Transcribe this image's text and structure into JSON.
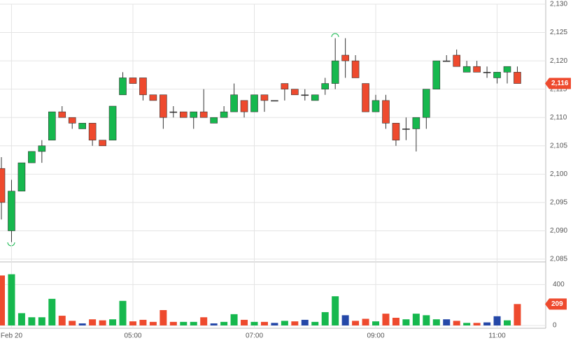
{
  "chart_data": {
    "type": "candlestick",
    "categories": [
      null,
      "Feb 20",
      null,
      null,
      null,
      null,
      null,
      null,
      null,
      null,
      null,
      null,
      null,
      "05:00",
      null,
      null,
      null,
      null,
      null,
      null,
      null,
      null,
      null,
      null,
      null,
      "07:00",
      null,
      null,
      null,
      null,
      null,
      null,
      null,
      null,
      null,
      null,
      null,
      "09:00",
      null,
      null,
      null,
      null,
      null,
      null,
      null,
      null,
      null,
      null,
      null,
      "11:00",
      null,
      null
    ],
    "open": [
      2101,
      2090,
      2097,
      2102,
      2104,
      2106,
      2111,
      2110,
      2108,
      2109,
      2106,
      2106,
      2114,
      2117,
      2117,
      2114,
      2114,
      2111,
      2111,
      2110,
      2111,
      2109,
      2110,
      2111,
      2113,
      2111,
      2114,
      2113,
      2116,
      2115,
      2114,
      2113,
      2115,
      2116,
      2121,
      2120,
      2116,
      2111,
      2113,
      2109,
      2108,
      2108,
      2110,
      2115,
      2120,
      2121,
      2118,
      2119,
      2118,
      2117,
      2118,
      2118
    ],
    "high": [
      2103,
      2099,
      2102,
      2104,
      2106,
      2111,
      2112,
      2110,
      2109,
      2109,
      2106,
      2112,
      2118,
      2117,
      2117,
      2114,
      2114,
      2112,
      2111,
      2111,
      2115,
      2110,
      2112,
      2116,
      2113,
      2114,
      2114,
      2113,
      2116,
      2115,
      2115,
      2114,
      2117,
      2124,
      2124,
      2121,
      2116,
      2114,
      2114,
      2109,
      2110,
      2110,
      2115,
      2120,
      2121,
      2122,
      2120,
      2120,
      2119,
      2118,
      2119,
      2119
    ],
    "low": [
      2092,
      2088,
      2097,
      2102,
      2102,
      2106,
      2110,
      2108,
      2108,
      2105,
      2105,
      2106,
      2114,
      2116,
      2113,
      2113,
      2108,
      2110,
      2110,
      2108,
      2110,
      2109,
      2110,
      2111,
      2110,
      2111,
      2111,
      2113,
      2113,
      2114,
      2113,
      2113,
      2114,
      2115,
      2117,
      2117,
      2111,
      2111,
      2108,
      2105,
      2106,
      2104,
      2108,
      2115,
      2120,
      2119,
      2118,
      2118,
      2117,
      2116,
      2116,
      2116
    ],
    "close": [
      2095,
      2097,
      2102,
      2104,
      2105,
      2111,
      2110,
      2109,
      2109,
      2106,
      2105,
      2112,
      2117,
      2116,
      2114,
      2113,
      2110,
      2111,
      2110,
      2111,
      2110,
      2110,
      2111,
      2114,
      2111,
      2114,
      2113,
      2113,
      2115,
      2114,
      2114,
      2114,
      2116,
      2120,
      2120,
      2117,
      2111,
      2113,
      2109,
      2106,
      2108,
      2110,
      2115,
      2120,
      2120,
      2119,
      2119,
      2118,
      2118,
      2118,
      2119,
      2116
    ],
    "volume": [
      488,
      500,
      120,
      80,
      80,
      260,
      95,
      45,
      20,
      60,
      50,
      60,
      240,
      40,
      55,
      35,
      150,
      35,
      35,
      35,
      80,
      20,
      35,
      110,
      55,
      35,
      35,
      25,
      45,
      40,
      55,
      35,
      130,
      285,
      100,
      45,
      65,
      40,
      115,
      75,
      60,
      115,
      100,
      60,
      60,
      45,
      25,
      25,
      30,
      90,
      50,
      209
    ],
    "volume_colors": [
      "#ee4a2e",
      "#16b84e",
      "#16b84e",
      "#16b84e",
      "#16b84e",
      "#16b84e",
      "#ee4a2e",
      "#ee4a2e",
      "#2548a8",
      "#ee4a2e",
      "#ee4a2e",
      "#16b84e",
      "#16b84e",
      "#ee4a2e",
      "#ee4a2e",
      "#ee4a2e",
      "#ee4a2e",
      "#ee4a2e",
      "#16b84e",
      "#16b84e",
      "#ee4a2e",
      "#2548a8",
      "#16b84e",
      "#16b84e",
      "#ee4a2e",
      "#16b84e",
      "#ee4a2e",
      "#2548a8",
      "#16b84e",
      "#ee4a2e",
      "#2548a8",
      "#16b84e",
      "#16b84e",
      "#16b84e",
      "#2548a8",
      "#ee4a2e",
      "#ee4a2e",
      "#16b84e",
      "#ee4a2e",
      "#ee4a2e",
      "#16b84e",
      "#16b84e",
      "#16b84e",
      "#16b84e",
      "#2548a8",
      "#ee4a2e",
      "#16b84e",
      "#ee4a2e",
      "#2548a8",
      "#2548a8",
      "#16b84e",
      "#ee4a2e"
    ],
    "up_color": "#16b84e",
    "down_color": "#ee4a2e",
    "flat_color": "#333333",
    "ylim": [
      2085,
      2130
    ],
    "yticks": [
      {
        "value": 2085,
        "label": "2,085"
      },
      {
        "value": 2090,
        "label": "2,090"
      },
      {
        "value": 2095,
        "label": "2,095"
      },
      {
        "value": 2100,
        "label": "2,100"
      },
      {
        "value": 2105,
        "label": "2,105"
      },
      {
        "value": 2110,
        "label": "2,110"
      },
      {
        "value": 2115,
        "label": "2,115"
      },
      {
        "value": 2120,
        "label": "2,120"
      },
      {
        "value": 2125,
        "label": "2,125"
      },
      {
        "value": 2130,
        "label": "2,130"
      }
    ],
    "volume_ylim": [
      0,
      600
    ],
    "volume_yticks": [
      0,
      400
    ],
    "price_marker": {
      "value": 2116,
      "label": "2,116"
    },
    "volume_marker": 209,
    "grid": true
  }
}
